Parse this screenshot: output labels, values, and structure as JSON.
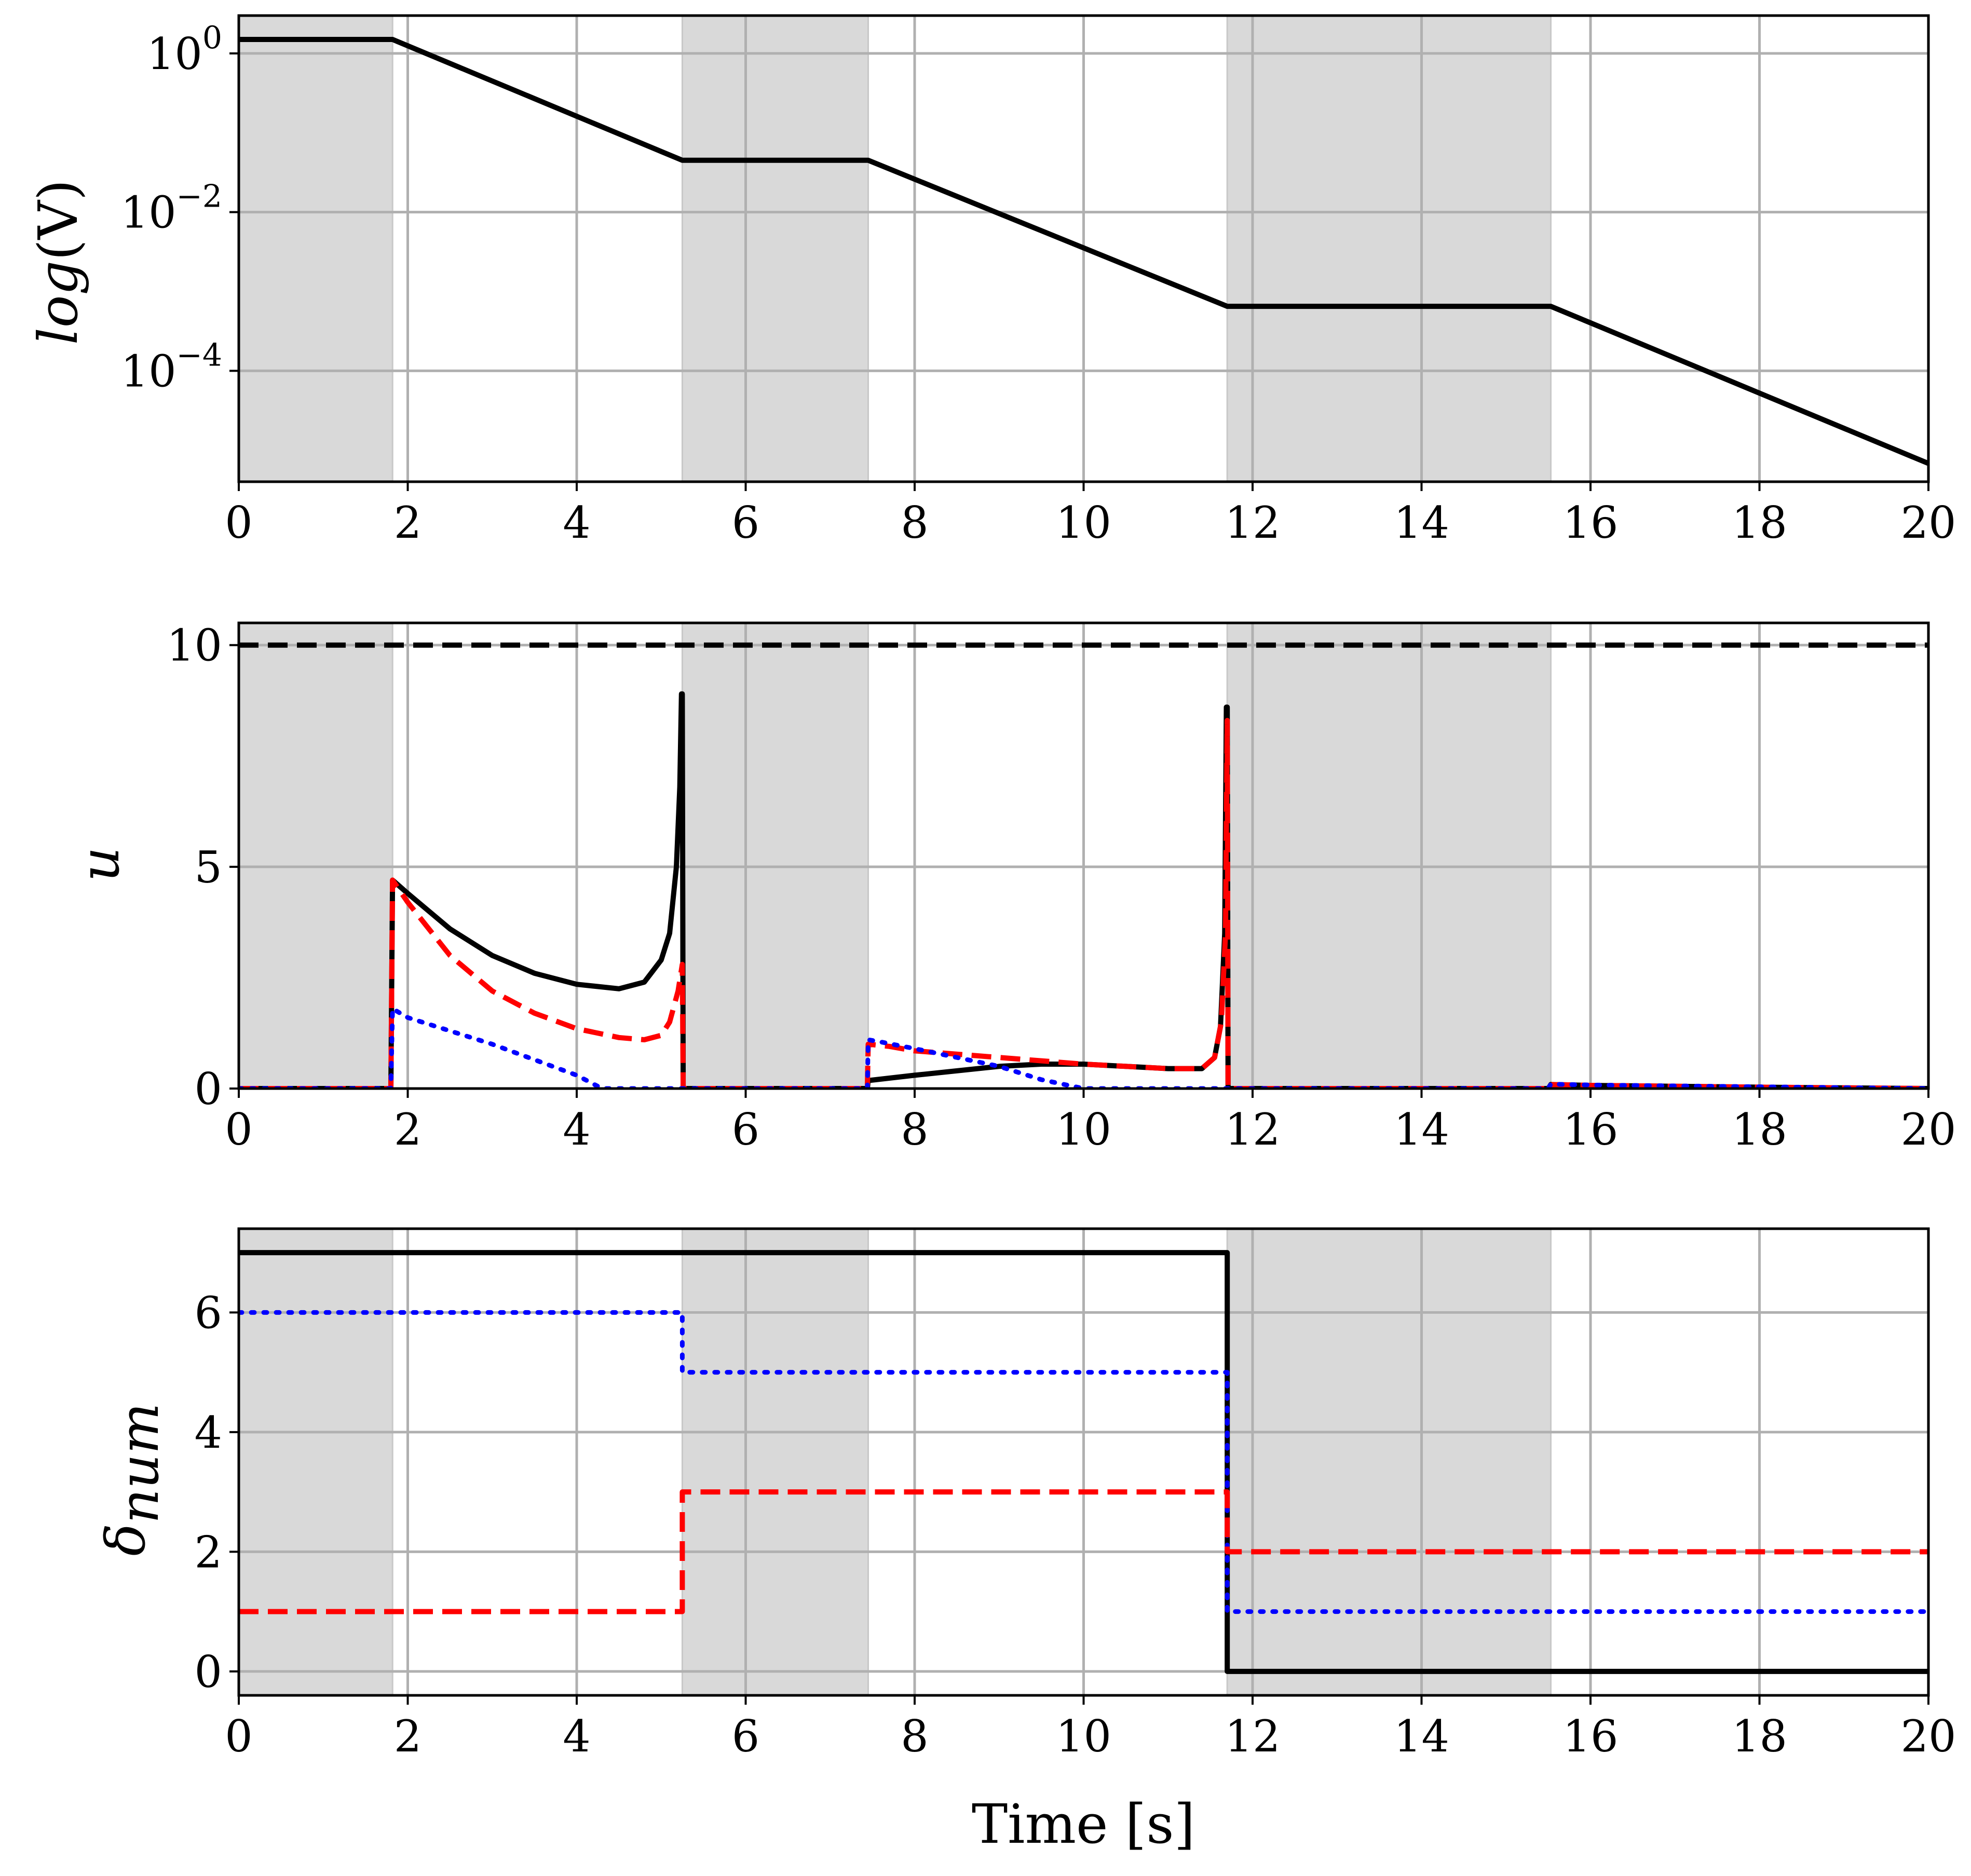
{
  "chart_data": [
    {
      "type": "line",
      "ylabel_parts": {
        "italic": "log",
        "rest": "(V)"
      },
      "yscale": "log",
      "xlim": [
        0,
        20
      ],
      "ylim": [
        4e-06,
        3
      ],
      "yticks": [
        {
          "value": 1,
          "exp": "0"
        },
        {
          "value": 0.01,
          "exp": "−2"
        },
        {
          "value": 0.0001,
          "exp": "−4"
        }
      ],
      "xticks": [
        0,
        2,
        4,
        6,
        8,
        10,
        12,
        14,
        16,
        18,
        20
      ],
      "grid": true,
      "shaded_intervals": [
        [
          0,
          1.82
        ],
        [
          5.25,
          7.45
        ],
        [
          11.7,
          15.53
        ]
      ],
      "series": [
        {
          "color": "#000000",
          "style": "solid",
          "x": [
            0,
            1.82,
            5.25,
            7.45,
            11.7,
            15.53,
            20
          ],
          "y": [
            1.5,
            1.5,
            0.045,
            0.045,
            0.00065,
            0.00065,
            6.8e-06
          ]
        }
      ]
    },
    {
      "type": "line",
      "ylabel": "u",
      "xlim": [
        0,
        20
      ],
      "ylim": [
        0,
        10.5
      ],
      "yticks": [
        0,
        5,
        10
      ],
      "xticks": [
        0,
        2,
        4,
        6,
        8,
        10,
        12,
        14,
        16,
        18,
        20
      ],
      "grid": true,
      "shaded_intervals": [
        [
          0,
          1.82
        ],
        [
          5.25,
          7.45
        ],
        [
          11.7,
          15.53
        ]
      ],
      "series": [
        {
          "color": "#000000",
          "style": "dashed",
          "x": [
            0,
            20
          ],
          "y": [
            10,
            10
          ]
        },
        {
          "color": "#000000",
          "style": "solid",
          "x": [
            0,
            1.8,
            1.82,
            2.0,
            2.5,
            3.0,
            3.5,
            4.0,
            4.5,
            4.8,
            5.0,
            5.1,
            5.18,
            5.22,
            5.24,
            5.25,
            5.26,
            7.44,
            7.45,
            8.0,
            9.0,
            9.5,
            10.0,
            10.5,
            11.0,
            11.4,
            11.55,
            11.62,
            11.67,
            11.69,
            11.7,
            11.71,
            15.5,
            15.53,
            16.0,
            18.0,
            20.0
          ],
          "y": [
            0,
            0,
            4.7,
            4.4,
            3.6,
            3.0,
            2.6,
            2.35,
            2.25,
            2.4,
            2.9,
            3.5,
            5.0,
            6.8,
            8.9,
            8.9,
            0,
            0,
            0.18,
            0.3,
            0.5,
            0.55,
            0.55,
            0.5,
            0.45,
            0.45,
            0.7,
            1.4,
            3.5,
            8.6,
            8.6,
            0,
            0,
            0.09,
            0.07,
            0.03,
            0.0
          ]
        },
        {
          "color": "#ff0000",
          "style": "dashed",
          "x": [
            0,
            1.8,
            1.82,
            2.0,
            2.5,
            3.0,
            3.5,
            4.0,
            4.5,
            4.8,
            5.0,
            5.1,
            5.2,
            5.25,
            5.26,
            7.44,
            7.45,
            7.7,
            8.0,
            9.0,
            10.0,
            11.0,
            11.4,
            11.55,
            11.63,
            11.68,
            11.7,
            11.71,
            15.5,
            15.53,
            16.0,
            18.0,
            20.0
          ],
          "y": [
            0,
            0,
            4.7,
            4.2,
            3.0,
            2.2,
            1.7,
            1.35,
            1.15,
            1.1,
            1.2,
            1.5,
            2.2,
            2.8,
            0,
            0,
            1.0,
            0.95,
            0.85,
            0.7,
            0.55,
            0.45,
            0.45,
            0.7,
            1.5,
            3.5,
            8.3,
            0,
            0,
            0.09,
            0.07,
            0.03,
            0.0
          ]
        },
        {
          "color": "#0000ff",
          "style": "dotted",
          "x": [
            0,
            1.8,
            1.82,
            2.0,
            3.0,
            4.0,
            4.3,
            5.25,
            7.44,
            7.45,
            7.6,
            8.0,
            9.0,
            9.5,
            10.0,
            11.7,
            15.5,
            15.53,
            16.0,
            18.0,
            20.0
          ],
          "y": [
            0,
            0,
            1.8,
            1.6,
            1.0,
            0.3,
            0,
            0,
            0,
            1.1,
            1.05,
            0.9,
            0.5,
            0.2,
            0,
            0,
            0,
            0.1,
            0.08,
            0.04,
            0.0
          ]
        }
      ]
    },
    {
      "type": "line",
      "ylabel_parts": {
        "italic": "δ",
        "sub": "num"
      },
      "xlabel": "Time [s]",
      "xlim": [
        0,
        20
      ],
      "ylim": [
        -0.4,
        7.4
      ],
      "yticks": [
        0,
        2,
        4,
        6
      ],
      "xticks": [
        0,
        2,
        4,
        6,
        8,
        10,
        12,
        14,
        16,
        18,
        20
      ],
      "grid": true,
      "shaded_intervals": [
        [
          0,
          1.82
        ],
        [
          5.25,
          7.45
        ],
        [
          11.7,
          15.53
        ]
      ],
      "series": [
        {
          "color": "#000000",
          "style": "solid",
          "step": true,
          "x": [
            0,
            11.7,
            11.7,
            20
          ],
          "y": [
            7,
            7,
            0,
            0
          ]
        },
        {
          "color": "#0000ff",
          "style": "dotted",
          "step": true,
          "x": [
            0,
            5.25,
            5.25,
            11.7,
            11.7,
            20
          ],
          "y": [
            6,
            6,
            5,
            5,
            1,
            1
          ]
        },
        {
          "color": "#ff0000",
          "style": "dashed",
          "step": true,
          "x": [
            0,
            5.25,
            5.25,
            11.7,
            11.7,
            20
          ],
          "y": [
            1,
            1,
            3,
            3,
            2,
            2
          ]
        }
      ]
    }
  ]
}
